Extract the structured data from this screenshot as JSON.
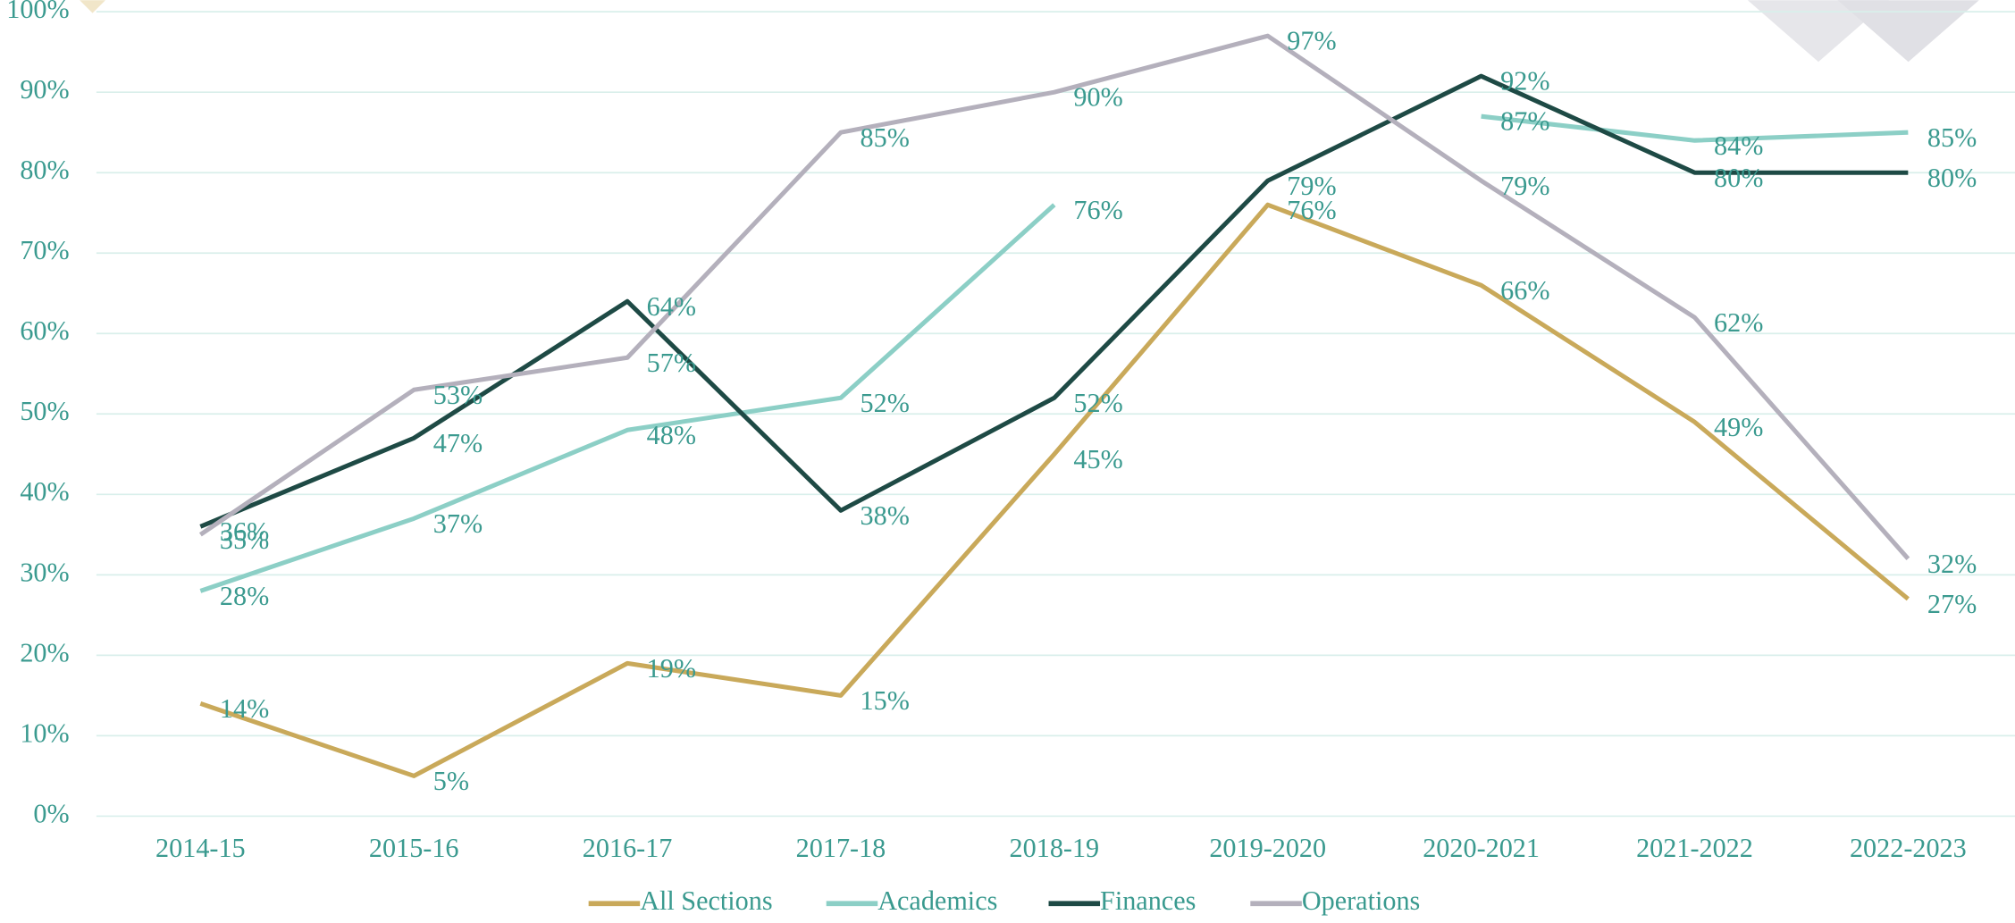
{
  "chart_data": {
    "type": "line",
    "categories": [
      "2014-15",
      "2015-16",
      "2016-17",
      "2017-18",
      "2018-19",
      "2019-2020",
      "2020-2021",
      "2021-2022",
      "2022-2023"
    ],
    "series": [
      {
        "name": "All Sections",
        "color": "#c9a95a",
        "values": [
          14,
          5,
          19,
          15,
          45,
          76,
          66,
          49,
          27
        ],
        "value_labels": [
          "14%",
          "5%",
          "19%",
          "15%",
          "45%",
          "76%",
          "66%",
          "49%",
          "27%"
        ]
      },
      {
        "name": "Academics",
        "color": "#8ccfc6",
        "values": [
          28,
          37,
          48,
          52,
          76,
          null,
          87,
          84,
          85
        ],
        "value_labels": [
          "28%",
          "37%",
          "48%",
          "52%",
          "76%",
          null,
          "87%",
          "84%",
          "85%"
        ]
      },
      {
        "name": "Finances",
        "color": "#1e4a45",
        "values": [
          36,
          47,
          64,
          38,
          52,
          79,
          92,
          80,
          80
        ],
        "value_labels": [
          "36%",
          "47%",
          "64%",
          "38%",
          "52%",
          "79%",
          "92%",
          "80%",
          "80%"
        ]
      },
      {
        "name": "Operations",
        "color": "#b4b0bc",
        "values": [
          35,
          53,
          57,
          85,
          90,
          97,
          79,
          62,
          32
        ],
        "value_labels": [
          "35%",
          "53%",
          "57%",
          "85%",
          "90%",
          "97%",
          "79%",
          "62%",
          "32%"
        ]
      }
    ],
    "ylim": [
      0,
      100
    ],
    "yticks": [
      {
        "value": 0,
        "label": "0%"
      },
      {
        "value": 10,
        "label": "10%"
      },
      {
        "value": 20,
        "label": "20%"
      },
      {
        "value": 30,
        "label": "30%"
      },
      {
        "value": 40,
        "label": "40%"
      },
      {
        "value": 50,
        "label": "50%"
      },
      {
        "value": 60,
        "label": "60%"
      },
      {
        "value": 70,
        "label": "70%"
      },
      {
        "value": 80,
        "label": "80%"
      },
      {
        "value": 90,
        "label": "90%"
      },
      {
        "value": 100,
        "label": "100%"
      }
    ],
    "grid": true,
    "legend": "bottom"
  }
}
